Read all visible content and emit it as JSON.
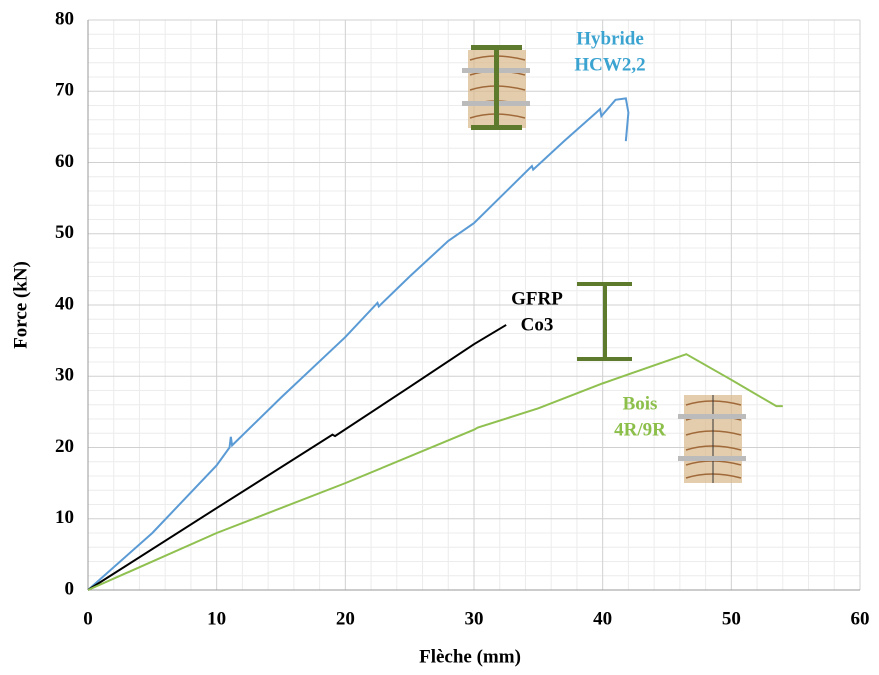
{
  "chart_data": {
    "type": "line",
    "x_label": "Flèche (mm)",
    "y_label": "Force (kN)",
    "xlim": [
      0,
      60
    ],
    "xticks": [
      0,
      10,
      20,
      30,
      40,
      50,
      60
    ],
    "ylim": [
      0,
      80
    ],
    "yticks": [
      0,
      10,
      20,
      30,
      40,
      50,
      60,
      70,
      80
    ],
    "grid": true,
    "series": [
      {
        "color": "#5b9bd5",
        "x": [
          0,
          5,
          10,
          11,
          11.1,
          11.2,
          15,
          20,
          22.5,
          22.6,
          25,
          28,
          30,
          34.5,
          34.6,
          37,
          39.5,
          39.8,
          39.9,
          41,
          41.8,
          42,
          41.8
        ],
        "values": [
          0,
          8,
          17.5,
          20,
          21.5,
          20.3,
          27,
          35.5,
          40.3,
          39.8,
          44,
          49,
          51.5,
          59.5,
          59,
          63,
          67,
          67.5,
          66.5,
          68.8,
          69,
          67,
          63
        ]
      },
      {
        "color": "#000000",
        "x": [
          0,
          10,
          19,
          19.2,
          25,
          30,
          32.5
        ],
        "values": [
          0,
          11.5,
          21.8,
          21.6,
          28.5,
          34.5,
          37.2
        ]
      },
      {
        "color": "#8fc050",
        "x": [
          0,
          10,
          20,
          30,
          30.3,
          35,
          40,
          46.5,
          50,
          53.5,
          54
        ],
        "values": [
          0,
          8,
          15,
          22.5,
          22.8,
          25.5,
          29,
          33.1,
          29.5,
          25.8,
          25.8
        ]
      }
    ],
    "annotations": [
      {
        "text": "Hybride",
        "color": "#3ba3d0"
      },
      {
        "text": "HCW2,2",
        "color": "#3ba3d0"
      },
      {
        "text": "GFRP",
        "color": "#000000"
      },
      {
        "text": "Co3",
        "color": "#000000"
      },
      {
        "text": "Bois",
        "color": "#8cbf4a"
      },
      {
        "text": "4R/9R",
        "color": "#8cbf4a"
      }
    ]
  }
}
